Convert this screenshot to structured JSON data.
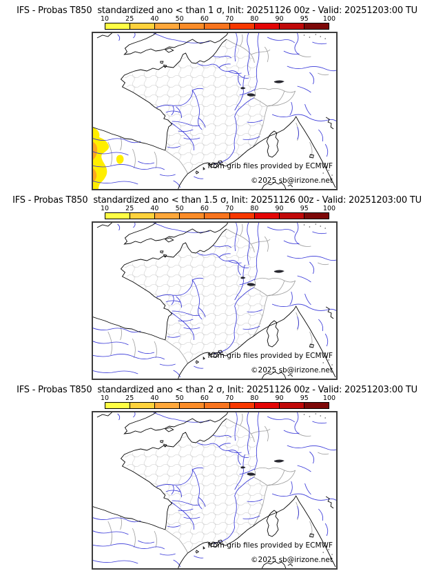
{
  "panels": [
    {
      "title": "IFS - Probas T850  standardized ano < than 1 σ, Init: 20251126 00z - Valid: 20251203:00 TU",
      "credit_line1": "from grib files provided by ECMWF",
      "credit_line2": "©2025 sb@irizone.net",
      "anomaly_visible": true
    },
    {
      "title": "IFS - Probas T850  standardized ano < than 1.5 σ, Init: 20251126 00z - Valid: 20251203:00 TU",
      "credit_line1": "from grib files provided by ECMWF",
      "credit_line2": "©2025 sb@irizone.net",
      "anomaly_visible": false
    },
    {
      "title": "IFS - Probas T850  standardized ano < than 2 σ, Init: 20251126 00z - Valid: 20251203:00 TU",
      "credit_line1": "from grib files provided by ECMWF",
      "credit_line2": "©2025 sb@irizone.net",
      "anomaly_visible": false
    }
  ],
  "colorbar": {
    "tick_labels": [
      "10",
      "25",
      "40",
      "50",
      "60",
      "70",
      "80",
      "90",
      "95",
      "100"
    ],
    "segment_colors": [
      "#ffff45",
      "#ffd23c",
      "#ffa73a",
      "#fb8c28",
      "#f8741e",
      "#f83800",
      "#e30505",
      "#c00909",
      "#7d0808"
    ]
  },
  "map": {
    "colors": {
      "coastline": "#000000",
      "rivers": "#3535d8",
      "national_borders": "#9a9a9a",
      "department_borders": "#cbcbcb",
      "lakes": "#26262e",
      "anomaly_yellow": "#ffee00",
      "anomaly_orange": "#ffa820"
    }
  }
}
